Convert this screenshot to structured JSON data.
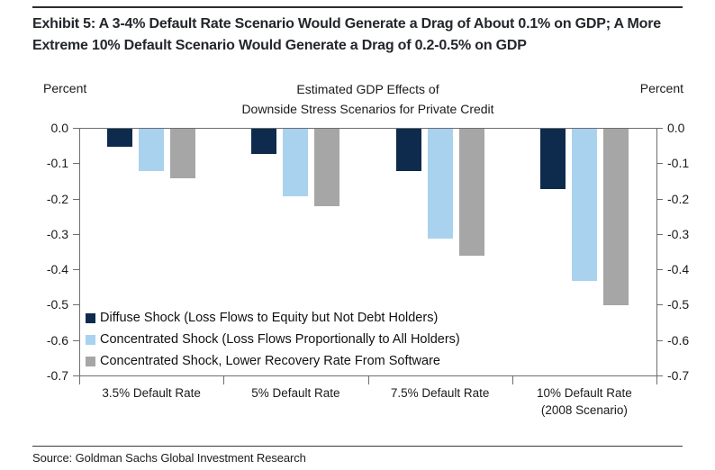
{
  "page": {
    "exhibit_title": "Exhibit 5: A 3-4% Default Rate Scenario Would Generate a Drag of About 0.1% on GDP; A More Extreme 10% Default Scenario Would Generate a Drag of 0.2-0.5% on GDP",
    "source": "Source: Goldman Sachs Global Investment Research"
  },
  "chart_data": {
    "type": "bar",
    "title_line1": "Estimated GDP Effects of",
    "title_line2": "Downside Stress Scenarios for Private Credit",
    "y_axis_label_left": "Percent",
    "y_axis_label_right": "Percent",
    "ylim": [
      -0.7,
      0.0
    ],
    "y_tick_labels": [
      "0.0",
      "-0.1",
      "-0.2",
      "-0.3",
      "-0.4",
      "-0.5",
      "-0.6",
      "-0.7"
    ],
    "grid": false,
    "legend_position": "lower-left-inside",
    "categories": [
      "3.5% Default Rate",
      "5% Default Rate",
      "7.5% Default Rate",
      "10% Default Rate (2008 Scenario)"
    ],
    "category_lines": [
      [
        "3.5% Default Rate"
      ],
      [
        "5% Default Rate"
      ],
      [
        "7.5% Default Rate"
      ],
      [
        "10% Default Rate",
        "(2008 Scenario)"
      ]
    ],
    "series": [
      {
        "name": "Diffuse Shock (Loss Flows to Equity but Not Debt Holders)",
        "color": "#0e2b4e",
        "values": [
          -0.05,
          -0.07,
          -0.12,
          -0.17
        ]
      },
      {
        "name": "Concentrated Shock (Loss Flows Proportionally to All Holders)",
        "color": "#a9d2ef",
        "values": [
          -0.12,
          -0.19,
          -0.31,
          -0.43
        ]
      },
      {
        "name": "Concentrated Shock, Lower Recovery Rate From Software",
        "color": "#a6a6a6",
        "values": [
          -0.14,
          -0.22,
          -0.36,
          -0.5
        ]
      }
    ]
  }
}
